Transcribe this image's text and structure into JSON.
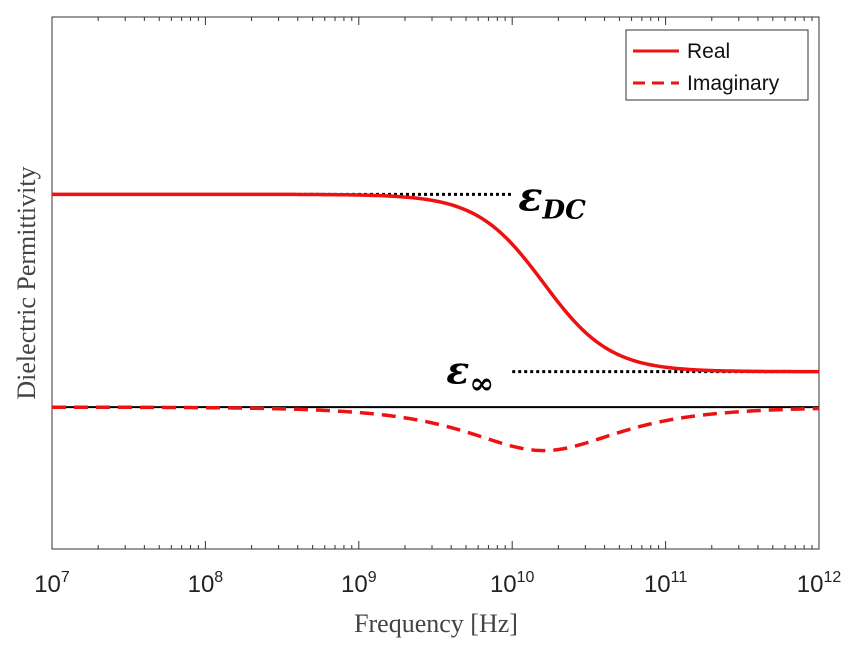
{
  "chart_data": {
    "type": "line",
    "title": "",
    "xlabel": "Frequency [Hz]",
    "ylabel": "Dielectric Permittivity",
    "xscale": "log",
    "xlim": [
      10000000,
      1000000000000
    ],
    "ylim": [
      -1.0,
      2.0
    ],
    "xticks": [
      {
        "base": "10",
        "exp": "7",
        "value": 10000000
      },
      {
        "base": "10",
        "exp": "8",
        "value": 100000000
      },
      {
        "base": "10",
        "exp": "9",
        "value": 1000000000
      },
      {
        "base": "10",
        "exp": "10",
        "value": 10000000000
      },
      {
        "base": "10",
        "exp": "11",
        "value": 100000000000
      },
      {
        "base": "10",
        "exp": "12",
        "value": 1000000000000
      }
    ],
    "model": {
      "eps_dc": 1.0,
      "eps_inf": 0.0,
      "relaxation_frequency_hz": 16000000000,
      "imag_scale": 0.49
    },
    "series": [
      {
        "name": "Real",
        "color": "#ee1111",
        "style": "solid"
      },
      {
        "name": "Imaginary",
        "color": "#ee1111",
        "style": "dashed"
      }
    ],
    "reference_lines": [
      {
        "label": "ε",
        "sub": "DC",
        "y": 1.0,
        "x_from": 10000000,
        "x_to": 10000000000,
        "style": "dotted",
        "color": "#000000"
      },
      {
        "label": "ε",
        "sub": "∞",
        "y": 0.0,
        "x_from": 10000000000,
        "x_to": 1000000000000,
        "style": "dotted",
        "color": "#000000"
      },
      {
        "label": "",
        "y": -0.2,
        "x_from": 10000000,
        "x_to": 1000000000000,
        "style": "solid",
        "color": "#000000"
      }
    ],
    "legend": {
      "position": "top-right",
      "entries": [
        "Real",
        "Imaginary"
      ]
    },
    "grid": false
  }
}
